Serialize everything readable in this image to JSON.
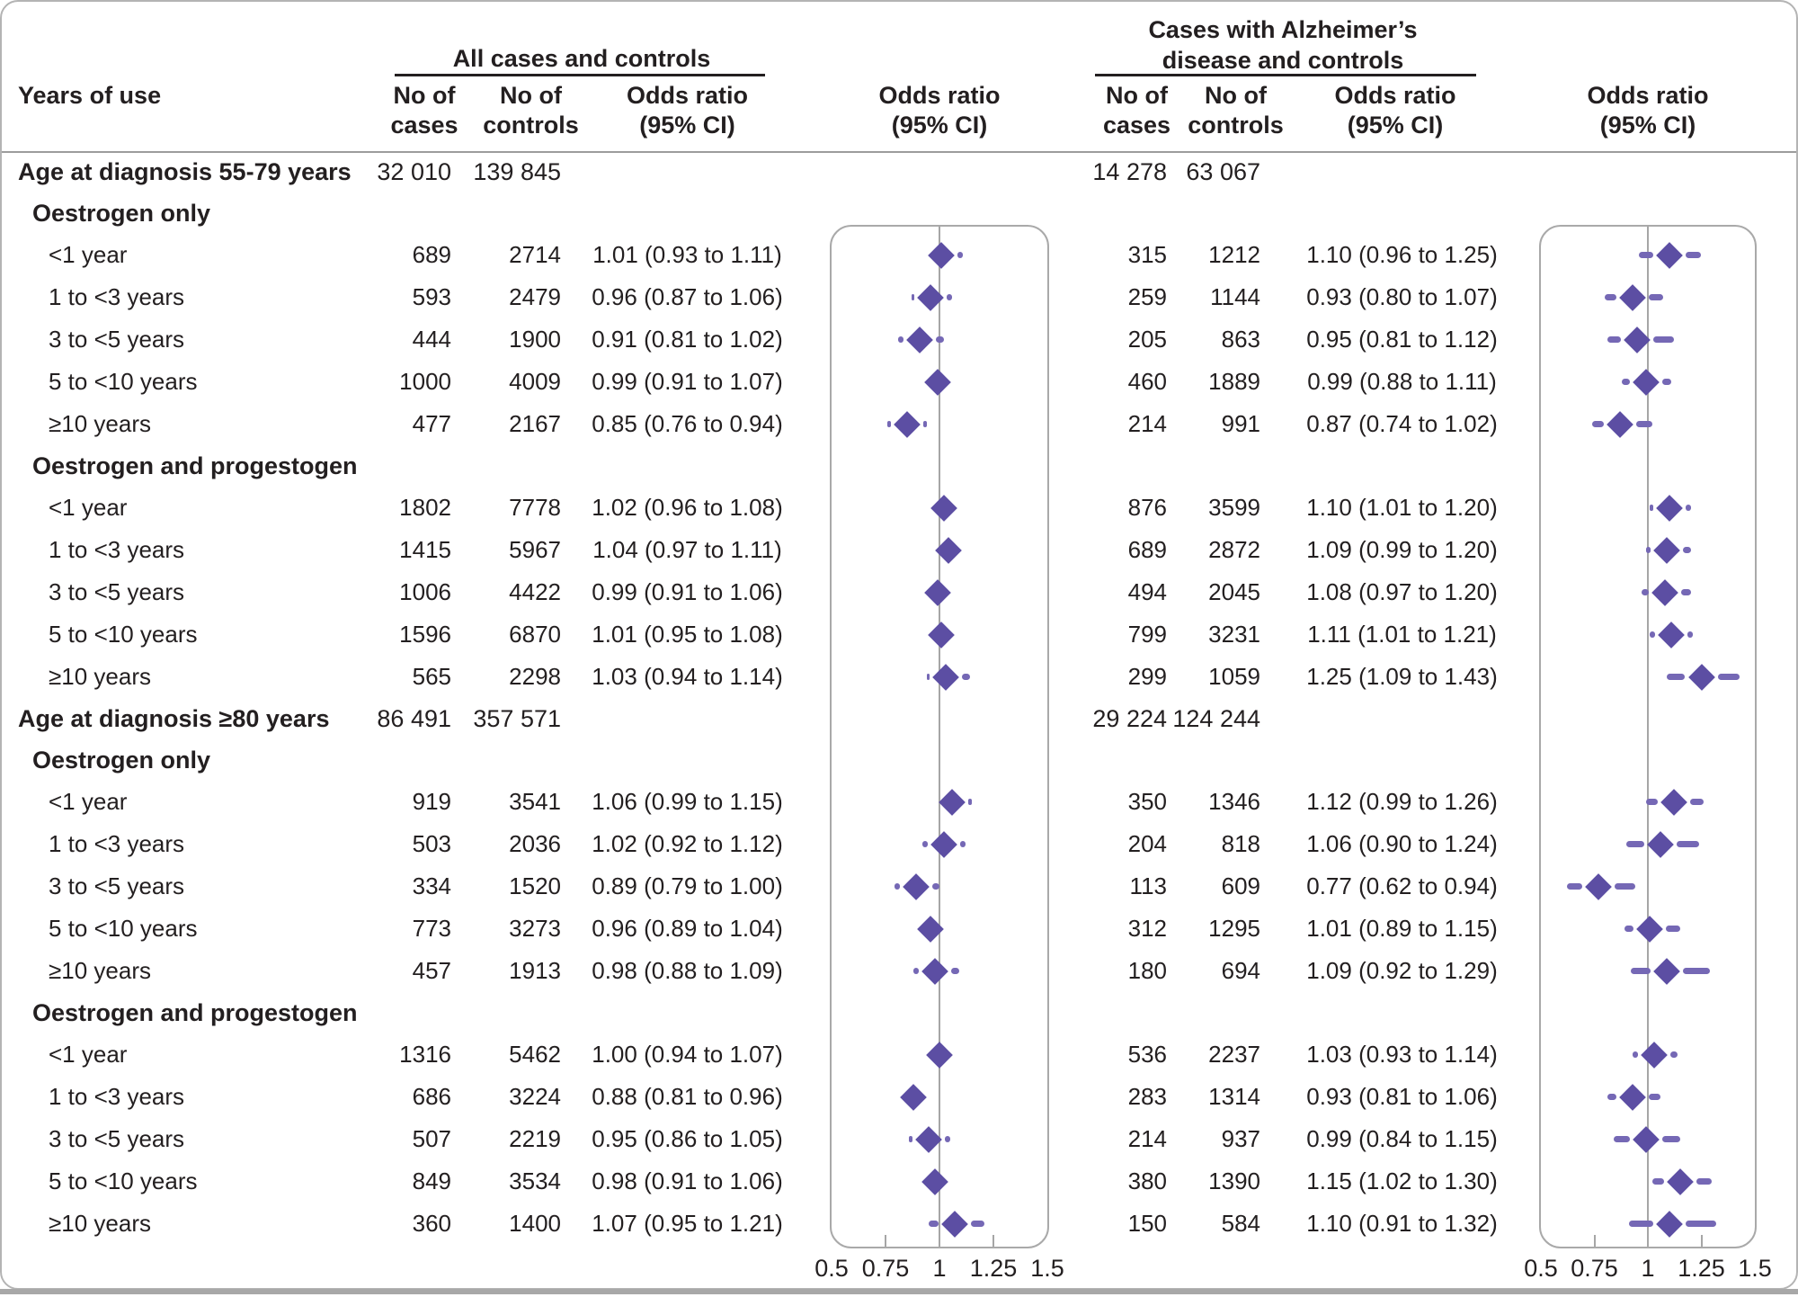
{
  "headers": {
    "years_of_use": "Years of use",
    "group_left": "All cases and controls",
    "group_right_line1": "Cases with Alzheimer’s",
    "group_right_line2": "disease and controls",
    "no_of": "No of",
    "cases": "cases",
    "controls": "controls",
    "odds_ratio": "Odds ratio",
    "ci": "(95% CI)"
  },
  "axis": {
    "labels": [
      "0.5",
      "0.75",
      "1",
      "1.25",
      "1.5"
    ],
    "values": [
      0.5,
      0.75,
      1,
      1.25,
      1.5
    ],
    "tick_values": [
      0.75,
      1,
      1.25
    ],
    "reference": 1
  },
  "colors": {
    "diamond": "#5c4ea3",
    "ci_line": "#7568b5",
    "panel_border": "#a9a9a9",
    "reference_line": "#a6a6a6",
    "divider": "#9c9c9c",
    "text": "#231f20"
  },
  "chart_data": {
    "type": "forest",
    "x_axis": {
      "ticks": [
        0.5,
        0.75,
        1,
        1.25,
        1.5
      ],
      "reference": 1,
      "scale": "odds ratio"
    },
    "panels": [
      "All cases and controls",
      "Cases with Alzheimer’s disease and controls"
    ],
    "rows": [
      {
        "type": "section",
        "label": "Age at diagnosis 55-79 years",
        "left": {
          "cases": "32 010",
          "controls": "139 845"
        },
        "right": {
          "cases": "14 278",
          "controls": "63 067"
        }
      },
      {
        "type": "sub",
        "label": "Oestrogen only"
      },
      {
        "type": "data",
        "label": "<1 year",
        "left": {
          "cases": "689",
          "controls": "2714",
          "or_text": "1.01 (0.93 to 1.11)",
          "or": 1.01,
          "lo": 0.93,
          "hi": 1.11
        },
        "right": {
          "cases": "315",
          "controls": "1212",
          "or_text": "1.10 (0.96 to 1.25)",
          "or": 1.1,
          "lo": 0.96,
          "hi": 1.25
        }
      },
      {
        "type": "data",
        "label": "1 to <3 years",
        "left": {
          "cases": "593",
          "controls": "2479",
          "or_text": "0.96 (0.87 to 1.06)",
          "or": 0.96,
          "lo": 0.87,
          "hi": 1.06
        },
        "right": {
          "cases": "259",
          "controls": "1144",
          "or_text": "0.93 (0.80 to 1.07)",
          "or": 0.93,
          "lo": 0.8,
          "hi": 1.07
        }
      },
      {
        "type": "data",
        "label": "3 to <5 years",
        "left": {
          "cases": "444",
          "controls": "1900",
          "or_text": "0.91 (0.81 to 1.02)",
          "or": 0.91,
          "lo": 0.81,
          "hi": 1.02
        },
        "right": {
          "cases": "205",
          "controls": "863",
          "or_text": "0.95 (0.81 to 1.12)",
          "or": 0.95,
          "lo": 0.81,
          "hi": 1.12
        }
      },
      {
        "type": "data",
        "label": "5 to <10 years",
        "left": {
          "cases": "1000",
          "controls": "4009",
          "or_text": "0.99 (0.91 to 1.07)",
          "or": 0.99,
          "lo": 0.91,
          "hi": 1.07
        },
        "right": {
          "cases": "460",
          "controls": "1889",
          "or_text": "0.99 (0.88 to 1.11)",
          "or": 0.99,
          "lo": 0.88,
          "hi": 1.11
        }
      },
      {
        "type": "data",
        "label": "≥10 years",
        "left": {
          "cases": "477",
          "controls": "2167",
          "or_text": "0.85 (0.76 to 0.94)",
          "or": 0.85,
          "lo": 0.76,
          "hi": 0.94
        },
        "right": {
          "cases": "214",
          "controls": "991",
          "or_text": "0.87 (0.74 to 1.02)",
          "or": 0.87,
          "lo": 0.74,
          "hi": 1.02
        }
      },
      {
        "type": "sub",
        "label": "Oestrogen and progestogen"
      },
      {
        "type": "data",
        "label": "<1 year",
        "left": {
          "cases": "1802",
          "controls": "7778",
          "or_text": "1.02 (0.96 to 1.08)",
          "or": 1.02,
          "lo": 0.96,
          "hi": 1.08
        },
        "right": {
          "cases": "876",
          "controls": "3599",
          "or_text": "1.10 (1.01 to 1.20)",
          "or": 1.1,
          "lo": 1.01,
          "hi": 1.2
        }
      },
      {
        "type": "data",
        "label": "1 to <3 years",
        "left": {
          "cases": "1415",
          "controls": "5967",
          "or_text": "1.04 (0.97 to 1.11)",
          "or": 1.04,
          "lo": 0.97,
          "hi": 1.11
        },
        "right": {
          "cases": "689",
          "controls": "2872",
          "or_text": "1.09 (0.99 to 1.20)",
          "or": 1.09,
          "lo": 0.99,
          "hi": 1.2
        }
      },
      {
        "type": "data",
        "label": "3 to <5 years",
        "left": {
          "cases": "1006",
          "controls": "4422",
          "or_text": "0.99 (0.91 to 1.06)",
          "or": 0.99,
          "lo": 0.91,
          "hi": 1.06
        },
        "right": {
          "cases": "494",
          "controls": "2045",
          "or_text": "1.08 (0.97 to 1.20)",
          "or": 1.08,
          "lo": 0.97,
          "hi": 1.2
        }
      },
      {
        "type": "data",
        "label": "5 to <10 years",
        "left": {
          "cases": "1596",
          "controls": "6870",
          "or_text": "1.01 (0.95 to 1.08)",
          "or": 1.01,
          "lo": 0.95,
          "hi": 1.08
        },
        "right": {
          "cases": "799",
          "controls": "3231",
          "or_text": "1.11 (1.01 to 1.21)",
          "or": 1.11,
          "lo": 1.01,
          "hi": 1.21
        }
      },
      {
        "type": "data",
        "label": "≥10 years",
        "left": {
          "cases": "565",
          "controls": "2298",
          "or_text": "1.03 (0.94 to 1.14)",
          "or": 1.03,
          "lo": 0.94,
          "hi": 1.14
        },
        "right": {
          "cases": "299",
          "controls": "1059",
          "or_text": "1.25 (1.09 to 1.43)",
          "or": 1.25,
          "lo": 1.09,
          "hi": 1.43
        }
      },
      {
        "type": "section",
        "label": "Age at diagnosis ≥80 years",
        "left": {
          "cases": "86 491",
          "controls": "357 571"
        },
        "right": {
          "cases": "29 224",
          "controls": "124 244"
        }
      },
      {
        "type": "sub",
        "label": "Oestrogen only"
      },
      {
        "type": "data",
        "label": "<1 year",
        "left": {
          "cases": "919",
          "controls": "3541",
          "or_text": "1.06 (0.99 to 1.15)",
          "or": 1.06,
          "lo": 0.99,
          "hi": 1.15
        },
        "right": {
          "cases": "350",
          "controls": "1346",
          "or_text": "1.12 (0.99 to 1.26)",
          "or": 1.12,
          "lo": 0.99,
          "hi": 1.26
        }
      },
      {
        "type": "data",
        "label": "1 to <3 years",
        "left": {
          "cases": "503",
          "controls": "2036",
          "or_text": "1.02 (0.92 to 1.12)",
          "or": 1.02,
          "lo": 0.92,
          "hi": 1.12
        },
        "right": {
          "cases": "204",
          "controls": "818",
          "or_text": "1.06 (0.90 to 1.24)",
          "or": 1.06,
          "lo": 0.9,
          "hi": 1.24
        }
      },
      {
        "type": "data",
        "label": "3 to <5 years",
        "left": {
          "cases": "334",
          "controls": "1520",
          "or_text": "0.89 (0.79 to 1.00)",
          "or": 0.89,
          "lo": 0.79,
          "hi": 1.0
        },
        "right": {
          "cases": "113",
          "controls": "609",
          "or_text": "0.77 (0.62 to 0.94)",
          "or": 0.77,
          "lo": 0.62,
          "hi": 0.94
        }
      },
      {
        "type": "data",
        "label": "5 to <10 years",
        "left": {
          "cases": "773",
          "controls": "3273",
          "or_text": "0.96 (0.89 to 1.04)",
          "or": 0.96,
          "lo": 0.89,
          "hi": 1.04
        },
        "right": {
          "cases": "312",
          "controls": "1295",
          "or_text": "1.01 (0.89 to 1.15)",
          "or": 1.01,
          "lo": 0.89,
          "hi": 1.15
        }
      },
      {
        "type": "data",
        "label": "≥10 years",
        "left": {
          "cases": "457",
          "controls": "1913",
          "or_text": "0.98 (0.88 to 1.09)",
          "or": 0.98,
          "lo": 0.88,
          "hi": 1.09
        },
        "right": {
          "cases": "180",
          "controls": "694",
          "or_text": "1.09 (0.92 to 1.29)",
          "or": 1.09,
          "lo": 0.92,
          "hi": 1.29
        }
      },
      {
        "type": "sub",
        "label": "Oestrogen and progestogen"
      },
      {
        "type": "data",
        "label": "<1 year",
        "left": {
          "cases": "1316",
          "controls": "5462",
          "or_text": "1.00 (0.94 to 1.07)",
          "or": 1.0,
          "lo": 0.94,
          "hi": 1.07
        },
        "right": {
          "cases": "536",
          "controls": "2237",
          "or_text": "1.03 (0.93 to 1.14)",
          "or": 1.03,
          "lo": 0.93,
          "hi": 1.14
        }
      },
      {
        "type": "data",
        "label": "1 to <3 years",
        "left": {
          "cases": "686",
          "controls": "3224",
          "or_text": "0.88 (0.81 to 0.96)",
          "or": 0.88,
          "lo": 0.81,
          "hi": 0.96
        },
        "right": {
          "cases": "283",
          "controls": "1314",
          "or_text": "0.93 (0.81 to 1.06)",
          "or": 0.93,
          "lo": 0.81,
          "hi": 1.06
        }
      },
      {
        "type": "data",
        "label": "3 to <5 years",
        "left": {
          "cases": "507",
          "controls": "2219",
          "or_text": "0.95 (0.86 to 1.05)",
          "or": 0.95,
          "lo": 0.86,
          "hi": 1.05
        },
        "right": {
          "cases": "214",
          "controls": "937",
          "or_text": "0.99 (0.84 to 1.15)",
          "or": 0.99,
          "lo": 0.84,
          "hi": 1.15
        }
      },
      {
        "type": "data",
        "label": "5 to <10 years",
        "left": {
          "cases": "849",
          "controls": "3534",
          "or_text": "0.98 (0.91 to 1.06)",
          "or": 0.98,
          "lo": 0.91,
          "hi": 1.06
        },
        "right": {
          "cases": "380",
          "controls": "1390",
          "or_text": "1.15 (1.02 to 1.30)",
          "or": 1.15,
          "lo": 1.02,
          "hi": 1.3
        }
      },
      {
        "type": "data",
        "label": "≥10 years",
        "left": {
          "cases": "360",
          "controls": "1400",
          "or_text": "1.07 (0.95 to 1.21)",
          "or": 1.07,
          "lo": 0.95,
          "hi": 1.21
        },
        "right": {
          "cases": "150",
          "controls": "584",
          "or_text": "1.10 (0.91 to 1.32)",
          "or": 1.1,
          "lo": 0.91,
          "hi": 1.32
        }
      }
    ]
  }
}
